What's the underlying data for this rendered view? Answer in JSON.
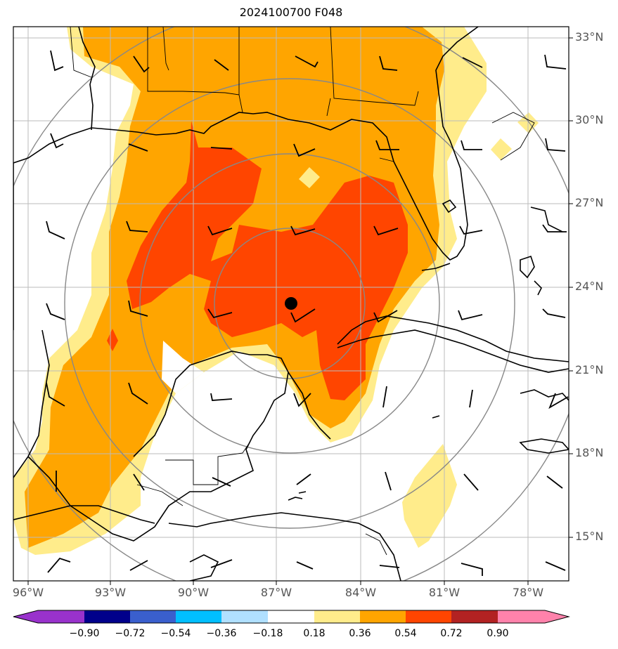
{
  "title": "2024100700 F048",
  "lat_labels": [
    "33°N",
    "30°N",
    "27°N",
    "24°N",
    "21°N",
    "18°N",
    "15°N"
  ],
  "lon_labels": [
    "96°W",
    "93°W",
    "90°W",
    "87°W",
    "84°W",
    "81°W",
    "78°W"
  ],
  "colorbar": {
    "labels": [
      "−0.90",
      "−0.72",
      "−0.54",
      "−0.36",
      "−0.18",
      "0.18",
      "0.36",
      "0.54",
      "0.72",
      "0.90"
    ],
    "colors": {
      "lt_neg_090": "#9932cc",
      "neg_090_072": "#00008b",
      "neg_072_054": "#3a5fcd",
      "neg_054_036": "#00bfff",
      "neg_036_018": "#b0e0ff",
      "neg_018_018": "#ffffff",
      "018_036": "#ffec8b",
      "036_054": "#ffa500",
      "054_072": "#ff4500",
      "072_090": "#b22222",
      "gt_090": "#ff82ab"
    }
  },
  "center_marker": {
    "lat": 23.5,
    "lon": -86.3
  },
  "colors": {
    "frame": "#000000",
    "grid": "#bbbbbb",
    "range_rings": "#888888",
    "coast": "#000000",
    "contour_line": "#000000"
  }
}
